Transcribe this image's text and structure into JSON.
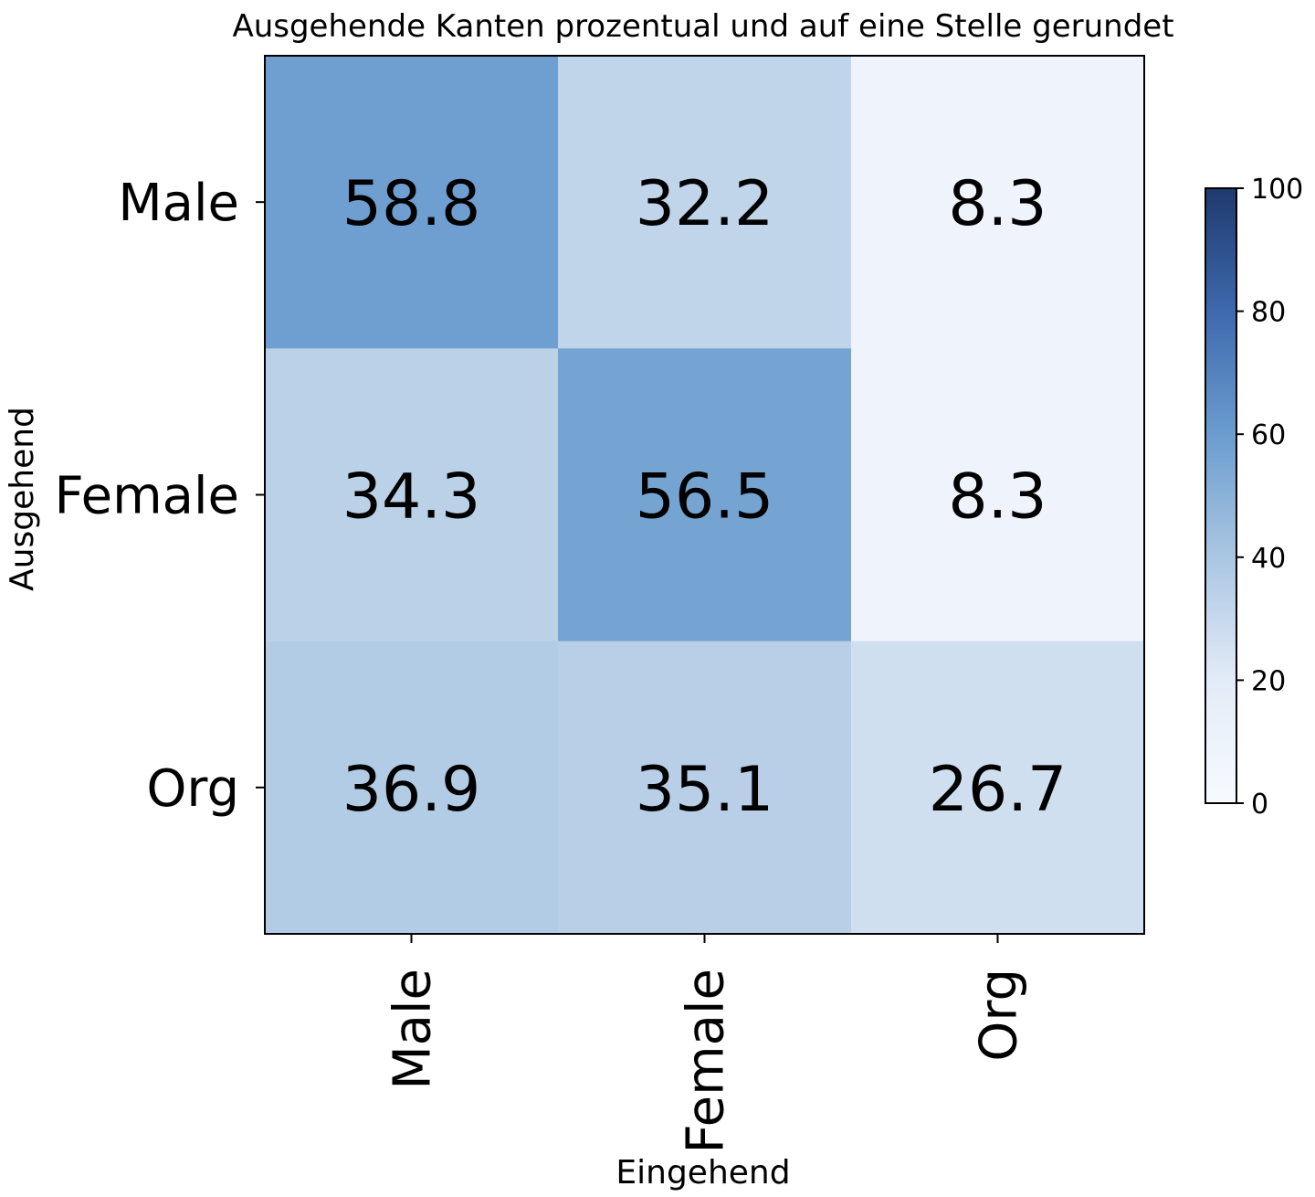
{
  "chart_data": {
    "type": "heatmap",
    "title": "Ausgehende Kanten prozentual und auf eine Stelle gerundet",
    "xlabel": "Eingehend",
    "ylabel": "Ausgehend",
    "x_categories": [
      "Male",
      "Female",
      "Org"
    ],
    "y_categories": [
      "Male",
      "Female",
      "Org"
    ],
    "values": [
      [
        58.8,
        32.2,
        8.3
      ],
      [
        34.3,
        56.5,
        8.3
      ],
      [
        36.9,
        35.1,
        26.7
      ]
    ],
    "cell_labels": [
      [
        "58.8",
        "32.2",
        "8.3"
      ],
      [
        "34.3",
        "56.5",
        "8.3"
      ],
      [
        "36.9",
        "35.1",
        "26.7"
      ]
    ],
    "colorbar": {
      "range": [
        0,
        100
      ],
      "ticks": [
        "0",
        "20",
        "40",
        "60",
        "80",
        "100"
      ],
      "colors": {
        "low": "#f7fbff",
        "mid": "#6b9dcf",
        "high": "#1f3a6e"
      }
    },
    "grid": false,
    "legend": "colorbar-right"
  }
}
